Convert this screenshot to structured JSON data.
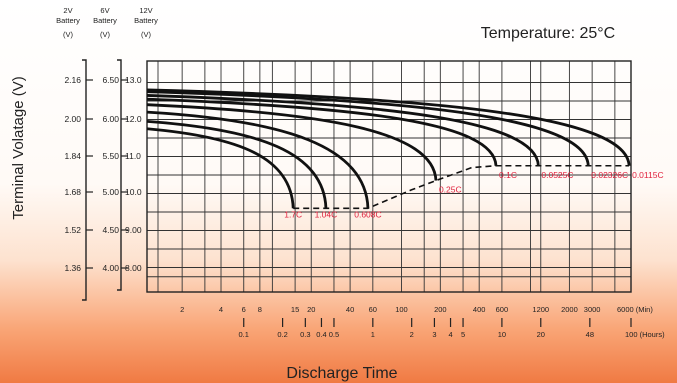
{
  "chart_data": {
    "type": "line",
    "title": "Temperature: 25°C",
    "xlabel": "Discharge Time",
    "ylabel": "Terminal Volatage (V)",
    "x_scale": "log",
    "x_unit": "minutes",
    "xlim": [
      1,
      6000
    ],
    "axes": [
      {
        "header": [
          "2V",
          "Battery",
          "(V)"
        ],
        "ticks": [
          "2.16",
          "2.00",
          "1.84",
          "1.68",
          "1.52",
          "1.36"
        ]
      },
      {
        "header": [
          "6V",
          "Battery",
          "(V)"
        ],
        "ticks": [
          "6.50",
          "6.00",
          "5.50",
          "5.00",
          "4.50",
          "4.00"
        ]
      },
      {
        "header": [
          "12V",
          "Battery",
          "(V)"
        ],
        "ticks": [
          "13.0",
          "12.0",
          "11.0",
          "10.0",
          "9.00",
          "8.00"
        ]
      }
    ],
    "ylim": [
      7.6,
      13.5
    ],
    "min_ticks": [
      {
        "label": "2",
        "x": 2
      },
      {
        "label": "4",
        "x": 4
      },
      {
        "label": "6",
        "x": 6
      },
      {
        "label": "8",
        "x": 8
      },
      {
        "label": "15",
        "x": 15
      },
      {
        "label": "20",
        "x": 20
      },
      {
        "label": "40",
        "x": 40
      },
      {
        "label": "60",
        "x": 60
      },
      {
        "label": "100",
        "x": 100
      },
      {
        "label": "200",
        "x": 200
      },
      {
        "label": "400",
        "x": 400
      },
      {
        "label": "600",
        "x": 600
      },
      {
        "label": "1200",
        "x": 1200
      },
      {
        "label": "2000",
        "x": 2000
      },
      {
        "label": "3000",
        "x": 3000
      },
      {
        "label": "6000 (Min)",
        "x": 6000
      }
    ],
    "hour_ticks": [
      {
        "label": "0.1",
        "x": 6
      },
      {
        "label": "0.2",
        "x": 12
      },
      {
        "label": "0.3",
        "x": 18
      },
      {
        "label": "0.4",
        "x": 24
      },
      {
        "label": "0.5",
        "x": 30
      },
      {
        "label": "1",
        "x": 60
      },
      {
        "label": "2",
        "x": 120
      },
      {
        "label": "3",
        "x": 180
      },
      {
        "label": "4",
        "x": 240
      },
      {
        "label": "5",
        "x": 300
      },
      {
        "label": "10",
        "x": 600
      },
      {
        "label": "20",
        "x": 1200
      },
      {
        "label": "48",
        "x": 2880
      },
      {
        "label": "100 (Hours)",
        "x": 6000
      }
    ],
    "vgrid": [
      1.3,
      2,
      3,
      4,
      6,
      8,
      10,
      15,
      20,
      30,
      40,
      60,
      100,
      150,
      200,
      300,
      400,
      600,
      1000,
      1200,
      2000,
      3000,
      4500,
      6000
    ],
    "hgrid": [
      7.75,
      8,
      8.5,
      9,
      9.5,
      10,
      10.5,
      11,
      11.5,
      12,
      12.5,
      13
    ],
    "series": [
      {
        "label": "1.7C",
        "start": 11.75,
        "end_x": 14.5,
        "end_y": 9.6
      },
      {
        "label": "1.04C",
        "start": 11.95,
        "end_x": 26,
        "end_y": 9.6
      },
      {
        "label": "0.608C",
        "start": 12.2,
        "end_x": 55,
        "end_y": 9.6
      },
      {
        "label": "0.25C",
        "start": 12.4,
        "end_x": 185,
        "end_y": 10.35
      },
      {
        "label": "0.1C",
        "start": 12.55,
        "end_x": 540,
        "end_y": 10.75
      },
      {
        "label": "0.0525C",
        "start": 12.65,
        "end_x": 1150,
        "end_y": 10.75
      },
      {
        "label": "0.02326C",
        "start": 12.75,
        "end_x": 2800,
        "end_y": 10.75
      },
      {
        "label": "0.0115C",
        "start": 12.8,
        "end_x": 5800,
        "end_y": 10.75
      }
    ],
    "end_voltage_line": [
      [
        14.5,
        9.6
      ],
      [
        40,
        9.6
      ],
      [
        55,
        9.6
      ],
      [
        120,
        10.1
      ],
      [
        185,
        10.35
      ],
      [
        350,
        10.7
      ],
      [
        540,
        10.75
      ],
      [
        5800,
        10.75
      ]
    ]
  }
}
